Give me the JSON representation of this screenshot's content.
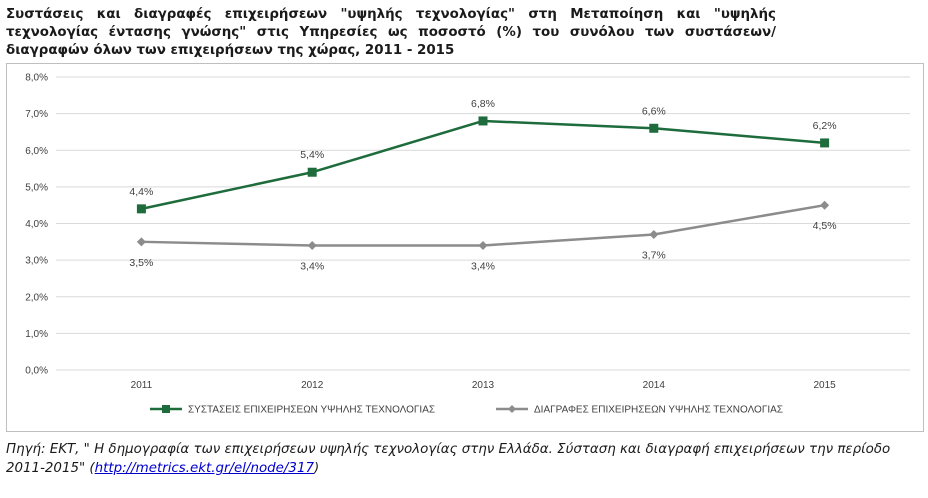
{
  "title": "Συστάσεις και διαγραφές επιχειρήσεων \"υψηλής τεχνολογίας\" στη Μεταποίηση και \"υψηλής τεχνολογίας έντασης γνώσης\" στις Υπηρεσίες ως ποσοστό (%) του συνόλου των συστάσεων/διαγραφών όλων των επιχειρήσεων της χώρας, 2011 - 2015",
  "source": {
    "text": "Πηγή: ΕΚΤ, \" Η δημογραφία των επιχειρήσεων υψηλής τεχνολογίας στην Ελλάδα. Σύσταση και διαγραφή επιχειρήσεων την περίοδο 2011-2015\" (",
    "link": "http://metrics.ekt.gr/el/node/317",
    "suffix": ")"
  },
  "chart_data": {
    "type": "line",
    "categories": [
      "2011",
      "2012",
      "2013",
      "2014",
      "2015"
    ],
    "y_ticks": [
      "0,0%",
      "1,0%",
      "2,0%",
      "3,0%",
      "4,0%",
      "5,0%",
      "6,0%",
      "7,0%",
      "8,0%"
    ],
    "ylim": [
      0,
      8
    ],
    "grid": true,
    "legend_position": "bottom",
    "series": [
      {
        "name": "ΣΥΣΤΑΣΕΙΣ ΕΠΙΧΕΙΡΗΣΕΩΝ ΥΨΗΛΗΣ ΤΕΧΝΟΛΟΓΙΑΣ",
        "values": [
          4.4,
          5.4,
          6.8,
          6.6,
          6.2
        ],
        "labels": [
          "4,4%",
          "5,4%",
          "6,8%",
          "6,6%",
          "6,2%"
        ],
        "label_position": "above",
        "color": "#1e6b3c",
        "marker": "square"
      },
      {
        "name": "ΔΙΑΓΡΑΦΕΣ ΕΠΙΧΕΙΡΗΣΕΩΝ ΥΨΗΛΗΣ ΤΕΧΝΟΛΟΓΙΑΣ",
        "values": [
          3.5,
          3.4,
          3.4,
          3.7,
          4.5
        ],
        "labels": [
          "3,5%",
          "3,4%",
          "3,4%",
          "3,7%",
          "4,5%"
        ],
        "label_position": "below",
        "color": "#8c8c8c",
        "marker": "diamond"
      }
    ]
  }
}
